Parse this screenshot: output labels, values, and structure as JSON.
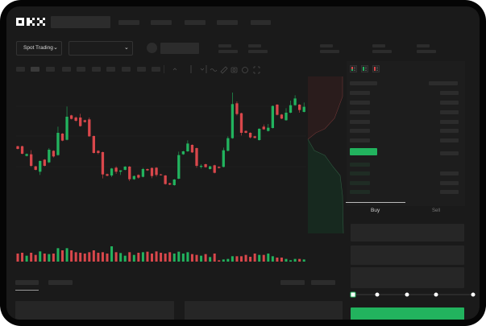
{
  "brand": {
    "logo": "OKX"
  },
  "header": {
    "trading_mode": "Spot Trading"
  },
  "trade_panel": {
    "buy_label": "Buy",
    "sell_label": "Sell",
    "leverage_steps": 5,
    "selected_step": 0
  },
  "colors": {
    "up": "#22b35e",
    "down": "#d9474b",
    "background": "#1a1a1a",
    "placeholder": "#2c2c2c"
  },
  "icons": [
    "chevron-down-icon",
    "indicator-icon",
    "drawing-pen-icon",
    "camera-icon",
    "settings-icon",
    "fullscreen-icon",
    "orderbook-both-icon",
    "orderbook-bids-icon",
    "orderbook-asks-icon"
  ],
  "chart_data": {
    "type": "candlestick",
    "title": "",
    "xlabel": "",
    "ylabel": "",
    "grid": true,
    "ohlc": [
      [
        175,
        177,
        163,
        165
      ],
      [
        175,
        177,
        145,
        147
      ],
      [
        139,
        148,
        137,
        146
      ],
      [
        145,
        160,
        98,
        102
      ],
      [
        100,
        102,
        85,
        87
      ],
      [
        80,
        122,
        68,
        120
      ],
      [
        125,
        127,
        100,
        102
      ],
      [
        115,
        168,
        112,
        162
      ],
      [
        158,
        160,
        133,
        137
      ],
      [
        142,
        248,
        140,
        225
      ],
      [
        222,
        224,
        194,
        196
      ],
      [
        199,
        323,
        197,
        285
      ],
      [
        290,
        292,
        275,
        277
      ],
      [
        282,
        286,
        266,
        270
      ],
      [
        282,
        296,
        248,
        250
      ],
      [
        272,
        274,
        263,
        265
      ],
      [
        275,
        282,
        210,
        212
      ],
      [
        213,
        215,
        148,
        150
      ],
      [
        158,
        160,
        145,
        150
      ],
      [
        153,
        155,
        55,
        70
      ],
      [
        71,
        73,
        63,
        65
      ],
      [
        66,
        94,
        60,
        92
      ],
      [
        95,
        100,
        72,
        80
      ],
      [
        80,
        85,
        68,
        85
      ],
      [
        87,
        101,
        85,
        99
      ],
      [
        99,
        101,
        45,
        52
      ],
      [
        52,
        66,
        50,
        64
      ],
      [
        68,
        70,
        54,
        58
      ],
      [
        61,
        94,
        59,
        90
      ],
      [
        90,
        92,
        83,
        85
      ],
      [
        94,
        96,
        56,
        64
      ],
      [
        95,
        97,
        62,
        68
      ],
      [
        70,
        72,
        66,
        68
      ],
      [
        66,
        68,
        32,
        34
      ],
      [
        37,
        39,
        30,
        32
      ],
      [
        30,
        53,
        28,
        51
      ],
      [
        54,
        155,
        52,
        142
      ],
      [
        145,
        158,
        143,
        156
      ],
      [
        156,
        197,
        154,
        185
      ],
      [
        180,
        182,
        150,
        152
      ],
      [
        168,
        170,
        95,
        102
      ],
      [
        98,
        108,
        92,
        102
      ],
      [
        108,
        110,
        95,
        97
      ],
      [
        90,
        102,
        88,
        100
      ],
      [
        104,
        106,
        74,
        76
      ],
      [
        98,
        100,
        92,
        94
      ],
      [
        98,
        170,
        96,
        160
      ],
      [
        158,
        212,
        156,
        205
      ],
      [
        205,
        375,
        203,
        332
      ],
      [
        335,
        342,
        290,
        295
      ],
      [
        298,
        300,
        215,
        225
      ],
      [
        232,
        234,
        223,
        225
      ],
      [
        225,
        227,
        204,
        208
      ],
      [
        212,
        214,
        204,
        206
      ],
      [
        198,
        242,
        196,
        240
      ],
      [
        248,
        256,
        236,
        238
      ],
      [
        232,
        258,
        230,
        244
      ],
      [
        243,
        327,
        241,
        325
      ],
      [
        330,
        332,
        290,
        292
      ],
      [
        293,
        295,
        276,
        278
      ],
      [
        272,
        317,
        270,
        300
      ],
      [
        300,
        345,
        298,
        328
      ],
      [
        328,
        365,
        326,
        353
      ],
      [
        330,
        332,
        300,
        310
      ],
      [
        303,
        338,
        301,
        322
      ]
    ],
    "volume": [
      30,
      33,
      22,
      33,
      25,
      38,
      30,
      28,
      30,
      50,
      42,
      50,
      42,
      35,
      33,
      30,
      35,
      42,
      33,
      35,
      30,
      57,
      35,
      32,
      22,
      35,
      25,
      33,
      35,
      37,
      30,
      38,
      33,
      30,
      35,
      30,
      37,
      30,
      35,
      28,
      25,
      22,
      28,
      17,
      30,
      5,
      8,
      10,
      20,
      20,
      20,
      25,
      18,
      30,
      25,
      25,
      30,
      20,
      15,
      15,
      10,
      5,
      10,
      10,
      8
    ]
  }
}
